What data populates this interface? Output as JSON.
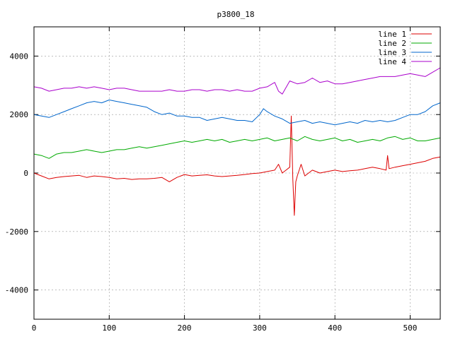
{
  "chart_data": {
    "type": "line",
    "title": "p3800_18",
    "xlabel": "",
    "ylabel": "",
    "xlim": [
      0,
      540
    ],
    "ylim": [
      -5000,
      5000
    ],
    "xticks": [
      0,
      100,
      200,
      300,
      400,
      500
    ],
    "yticks": [
      -4000,
      -2000,
      0,
      2000,
      4000
    ],
    "grid": true,
    "legend_position": "top-right",
    "series": [
      {
        "name": "line 1",
        "color": "#dd0000",
        "x": [
          0,
          10,
          20,
          30,
          40,
          50,
          60,
          70,
          80,
          90,
          100,
          110,
          120,
          130,
          140,
          150,
          160,
          170,
          180,
          190,
          200,
          210,
          220,
          230,
          240,
          250,
          260,
          270,
          280,
          290,
          300,
          310,
          320,
          325,
          330,
          335,
          340,
          342,
          344,
          346,
          348,
          350,
          355,
          360,
          370,
          380,
          390,
          400,
          410,
          420,
          430,
          440,
          450,
          460,
          468,
          470,
          472,
          480,
          490,
          500,
          510,
          520,
          530,
          540
        ],
        "y": [
          0,
          -100,
          -200,
          -150,
          -120,
          -100,
          -80,
          -150,
          -100,
          -120,
          -150,
          -200,
          -180,
          -220,
          -200,
          -200,
          -180,
          -150,
          -300,
          -150,
          -50,
          -100,
          -80,
          -60,
          -100,
          -120,
          -100,
          -80,
          -50,
          -20,
          0,
          50,
          100,
          300,
          0,
          100,
          200,
          1950,
          -200,
          -1450,
          -300,
          -100,
          300,
          -100,
          100,
          0,
          50,
          100,
          50,
          80,
          100,
          150,
          200,
          150,
          100,
          600,
          150,
          200,
          250,
          300,
          350,
          400,
          500,
          550
        ]
      },
      {
        "name": "line 2",
        "color": "#00aa00",
        "x": [
          0,
          10,
          20,
          30,
          40,
          50,
          60,
          70,
          80,
          90,
          100,
          110,
          120,
          130,
          140,
          150,
          160,
          170,
          180,
          190,
          200,
          210,
          220,
          230,
          240,
          250,
          260,
          270,
          280,
          290,
          300,
          310,
          320,
          330,
          340,
          350,
          360,
          370,
          380,
          390,
          400,
          410,
          420,
          430,
          440,
          450,
          460,
          470,
          480,
          490,
          500,
          510,
          520,
          530,
          540
        ],
        "y": [
          650,
          600,
          500,
          650,
          700,
          700,
          750,
          800,
          750,
          700,
          750,
          800,
          800,
          850,
          900,
          850,
          900,
          950,
          1000,
          1050,
          1100,
          1050,
          1100,
          1150,
          1100,
          1150,
          1050,
          1100,
          1150,
          1100,
          1150,
          1200,
          1100,
          1150,
          1200,
          1100,
          1250,
          1150,
          1100,
          1150,
          1200,
          1100,
          1150,
          1050,
          1100,
          1150,
          1100,
          1200,
          1250,
          1150,
          1200,
          1100,
          1100,
          1150,
          1200
        ]
      },
      {
        "name": "line 3",
        "color": "#0066cc",
        "x": [
          0,
          10,
          20,
          30,
          40,
          50,
          60,
          70,
          80,
          90,
          100,
          110,
          120,
          130,
          140,
          150,
          160,
          170,
          180,
          190,
          200,
          210,
          220,
          230,
          240,
          250,
          260,
          270,
          280,
          290,
          300,
          305,
          310,
          320,
          330,
          340,
          350,
          360,
          370,
          380,
          390,
          400,
          410,
          420,
          430,
          440,
          450,
          460,
          470,
          480,
          490,
          500,
          510,
          520,
          530,
          540
        ],
        "y": [
          2000,
          1950,
          1900,
          2000,
          2100,
          2200,
          2300,
          2400,
          2450,
          2400,
          2500,
          2450,
          2400,
          2350,
          2300,
          2250,
          2100,
          2000,
          2050,
          1950,
          1950,
          1900,
          1900,
          1800,
          1850,
          1900,
          1850,
          1800,
          1800,
          1750,
          2000,
          2200,
          2100,
          1950,
          1850,
          1700,
          1750,
          1800,
          1700,
          1750,
          1700,
          1650,
          1700,
          1750,
          1700,
          1800,
          1750,
          1800,
          1750,
          1800,
          1900,
          2000,
          2000,
          2100,
          2300,
          2400
        ]
      },
      {
        "name": "line 4",
        "color": "#aa00cc",
        "x": [
          0,
          10,
          20,
          30,
          40,
          50,
          60,
          70,
          80,
          90,
          100,
          110,
          120,
          130,
          140,
          150,
          160,
          170,
          180,
          190,
          200,
          210,
          220,
          230,
          240,
          250,
          260,
          270,
          280,
          290,
          300,
          310,
          320,
          325,
          330,
          340,
          350,
          360,
          370,
          380,
          390,
          400,
          410,
          420,
          430,
          440,
          450,
          460,
          470,
          480,
          490,
          500,
          510,
          520,
          530,
          540
        ],
        "y": [
          2950,
          2900,
          2800,
          2850,
          2900,
          2900,
          2950,
          2900,
          2950,
          2900,
          2850,
          2900,
          2900,
          2850,
          2800,
          2800,
          2800,
          2800,
          2850,
          2800,
          2800,
          2850,
          2850,
          2800,
          2850,
          2850,
          2800,
          2850,
          2800,
          2800,
          2900,
          2950,
          3100,
          2800,
          2700,
          3150,
          3050,
          3100,
          3250,
          3100,
          3150,
          3050,
          3050,
          3100,
          3150,
          3200,
          3250,
          3300,
          3300,
          3300,
          3350,
          3400,
          3350,
          3300,
          3450,
          3600
        ]
      }
    ]
  }
}
